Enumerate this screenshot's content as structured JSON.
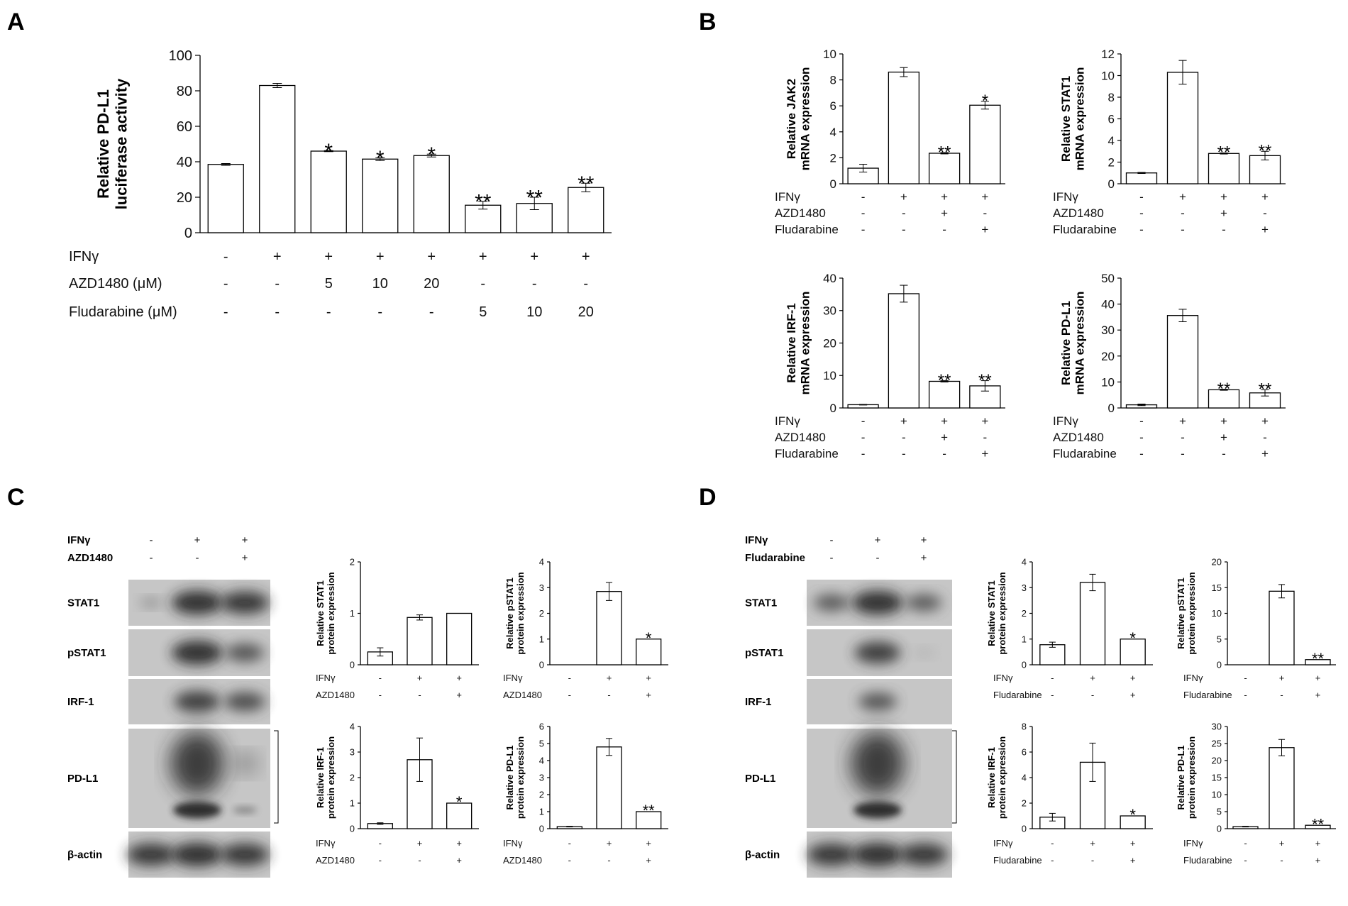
{
  "panels": {
    "A": {
      "letter": "A"
    },
    "B": {
      "letter": "B"
    },
    "C": {
      "letter": "C"
    },
    "D": {
      "letter": "D"
    }
  },
  "chart_data": [
    {
      "id": "A",
      "type": "bar",
      "ylabel": "Relative PD-L1\nluciferase activity",
      "ylim": [
        0,
        100
      ],
      "yticks": [
        0,
        20,
        40,
        60,
        80,
        100
      ],
      "values": [
        38.5,
        83,
        46,
        41.5,
        43.5,
        15.5,
        16.5,
        25.5
      ],
      "errors": [
        0.5,
        1.2,
        0.3,
        0.8,
        0.8,
        2.2,
        3.5,
        2.4
      ],
      "significance": [
        "",
        "",
        "*",
        "*",
        "*",
        "**",
        "**",
        "**"
      ],
      "conditions": [
        {
          "label": "IFNγ",
          "values": [
            "-",
            "+",
            "+",
            "+",
            "+",
            "+",
            "+",
            "+"
          ]
        },
        {
          "label": "AZD1480 (μM)",
          "values": [
            "-",
            "-",
            "5",
            "10",
            "20",
            "-",
            "-",
            "-"
          ]
        },
        {
          "label": "Fludarabine (μM)",
          "values": [
            "-",
            "-",
            "-",
            "-",
            "-",
            "5",
            "10",
            "20"
          ]
        }
      ]
    },
    {
      "id": "B1",
      "type": "bar",
      "ylabel": "Relative JAK2\nmRNA expression",
      "ylim": [
        0,
        10
      ],
      "yticks": [
        0,
        2,
        4,
        6,
        8,
        10
      ],
      "values": [
        1.2,
        8.6,
        2.35,
        6.05
      ],
      "errors": [
        0.3,
        0.35,
        0.05,
        0.3
      ],
      "significance": [
        "",
        "",
        "**",
        "*"
      ],
      "conditions": [
        {
          "label": "IFNγ",
          "values": [
            "-",
            "+",
            "+",
            "+"
          ]
        },
        {
          "label": "AZD1480",
          "values": [
            "-",
            "-",
            "+",
            "-"
          ]
        },
        {
          "label": "Fludarabine",
          "values": [
            "-",
            "-",
            "-",
            "+"
          ]
        }
      ]
    },
    {
      "id": "B2",
      "type": "bar",
      "ylabel": "Relative STAT1\nmRNA expression",
      "ylim": [
        0,
        12
      ],
      "yticks": [
        0,
        2,
        4,
        6,
        8,
        10,
        12
      ],
      "values": [
        1.0,
        10.3,
        2.8,
        2.6
      ],
      "errors": [
        0.05,
        1.1,
        0.05,
        0.4
      ],
      "significance": [
        "",
        "",
        "**",
        "**"
      ],
      "conditions": [
        {
          "label": "IFNγ",
          "values": [
            "-",
            "+",
            "+",
            "+"
          ]
        },
        {
          "label": "AZD1480",
          "values": [
            "-",
            "-",
            "+",
            "-"
          ]
        },
        {
          "label": "Fludarabine",
          "values": [
            "-",
            "-",
            "-",
            "+"
          ]
        }
      ]
    },
    {
      "id": "B3",
      "type": "bar",
      "ylabel": "Relative IRF-1\nmRNA expression",
      "ylim": [
        0,
        40
      ],
      "yticks": [
        0,
        10,
        20,
        30,
        40
      ],
      "values": [
        1.0,
        35.2,
        8.2,
        6.8
      ],
      "errors": [
        0.1,
        2.6,
        0.2,
        1.6
      ],
      "significance": [
        "",
        "",
        "**",
        "**"
      ],
      "conditions": [
        {
          "label": "IFNγ",
          "values": [
            "-",
            "+",
            "+",
            "+"
          ]
        },
        {
          "label": "AZD1480",
          "values": [
            "-",
            "-",
            "+",
            "-"
          ]
        },
        {
          "label": "Fludarabine",
          "values": [
            "-",
            "-",
            "-",
            "+"
          ]
        }
      ]
    },
    {
      "id": "B4",
      "type": "bar",
      "ylabel": "Relative PD-L1\nmRNA expression",
      "ylim": [
        0,
        50
      ],
      "yticks": [
        0,
        10,
        20,
        30,
        40,
        50
      ],
      "values": [
        1.2,
        35.6,
        7.0,
        5.8
      ],
      "errors": [
        0.3,
        2.4,
        0.2,
        1.2
      ],
      "significance": [
        "",
        "",
        "**",
        "**"
      ],
      "conditions": [
        {
          "label": "IFNγ",
          "values": [
            "-",
            "+",
            "+",
            "+"
          ]
        },
        {
          "label": "AZD1480",
          "values": [
            "-",
            "-",
            "+",
            "-"
          ]
        },
        {
          "label": "Fludarabine",
          "values": [
            "-",
            "-",
            "-",
            "+"
          ]
        }
      ]
    },
    {
      "id": "C1",
      "type": "bar",
      "ylabel": "Relative STAT1\nprotein expression",
      "ylim": [
        0,
        2
      ],
      "yticks": [
        0,
        1,
        2
      ],
      "values": [
        0.25,
        0.92,
        1.0
      ],
      "errors": [
        0.08,
        0.05,
        0.0
      ],
      "significance": [
        "",
        "",
        ""
      ],
      "conditions": [
        {
          "label": "IFNγ",
          "values": [
            "-",
            "+",
            "+"
          ]
        },
        {
          "label": "AZD1480",
          "values": [
            "-",
            "-",
            "+"
          ]
        }
      ]
    },
    {
      "id": "C2",
      "type": "bar",
      "ylabel": "Relative pSTAT1\nprotein expression",
      "ylim": [
        0,
        4
      ],
      "yticks": [
        0,
        1,
        2,
        3,
        4
      ],
      "values": [
        0.0,
        2.85,
        1.0
      ],
      "errors": [
        0.0,
        0.35,
        0.0
      ],
      "significance": [
        "",
        "",
        "*"
      ],
      "conditions": [
        {
          "label": "IFNγ",
          "values": [
            "-",
            "+",
            "+"
          ]
        },
        {
          "label": "AZD1480",
          "values": [
            "-",
            "-",
            "+"
          ]
        }
      ]
    },
    {
      "id": "C3",
      "type": "bar",
      "ylabel": "Relative IRF-1\nprotein expression",
      "ylim": [
        0,
        4
      ],
      "yticks": [
        0,
        1,
        2,
        3,
        4
      ],
      "values": [
        0.2,
        2.7,
        1.0
      ],
      "errors": [
        0.03,
        0.85,
        0.0
      ],
      "significance": [
        "",
        "",
        "*"
      ],
      "conditions": [
        {
          "label": "IFNγ",
          "values": [
            "-",
            "+",
            "+"
          ]
        },
        {
          "label": "AZD1480",
          "values": [
            "-",
            "-",
            "+"
          ]
        }
      ]
    },
    {
      "id": "C4",
      "type": "bar",
      "ylabel": "Relative PD-L1\nprotein expression",
      "ylim": [
        0,
        6
      ],
      "yticks": [
        0,
        1,
        2,
        3,
        4,
        5,
        6
      ],
      "values": [
        0.12,
        4.8,
        1.0
      ],
      "errors": [
        0.02,
        0.5,
        0.0
      ],
      "significance": [
        "",
        "",
        "**"
      ],
      "conditions": [
        {
          "label": "IFNγ",
          "values": [
            "-",
            "+",
            "+"
          ]
        },
        {
          "label": "AZD1480",
          "values": [
            "-",
            "-",
            "+"
          ]
        }
      ]
    },
    {
      "id": "D1",
      "type": "bar",
      "ylabel": "Relative STAT1\nprotein expression",
      "ylim": [
        0,
        4
      ],
      "yticks": [
        0,
        1,
        2,
        3,
        4
      ],
      "values": [
        0.78,
        3.2,
        1.0
      ],
      "errors": [
        0.1,
        0.32,
        0.0
      ],
      "significance": [
        "",
        "",
        "*"
      ],
      "conditions": [
        {
          "label": "IFNγ",
          "values": [
            "-",
            "+",
            "+"
          ]
        },
        {
          "label": "Fludarabine",
          "values": [
            "-",
            "-",
            "+"
          ]
        }
      ]
    },
    {
      "id": "D2",
      "type": "bar",
      "ylabel": "Relative pSTAT1\nprotein expression",
      "ylim": [
        0,
        20
      ],
      "yticks": [
        0,
        5,
        10,
        15,
        20
      ],
      "values": [
        0.0,
        14.3,
        1.0
      ],
      "errors": [
        0.0,
        1.3,
        0.0
      ],
      "significance": [
        "",
        "",
        "**"
      ],
      "conditions": [
        {
          "label": "IFNγ",
          "values": [
            "-",
            "+",
            "+"
          ]
        },
        {
          "label": "Fludarabine",
          "values": [
            "-",
            "-",
            "+"
          ]
        }
      ]
    },
    {
      "id": "D3",
      "type": "bar",
      "ylabel": "Relative IRF-1\nprotein expression",
      "ylim": [
        0,
        8
      ],
      "yticks": [
        0,
        2,
        4,
        6,
        8
      ],
      "values": [
        0.9,
        5.2,
        1.0
      ],
      "errors": [
        0.3,
        1.5,
        0.0
      ],
      "significance": [
        "",
        "",
        "*"
      ],
      "conditions": [
        {
          "label": "IFNγ",
          "values": [
            "-",
            "+",
            "+"
          ]
        },
        {
          "label": "Fludarabine",
          "values": [
            "-",
            "-",
            "+"
          ]
        }
      ]
    },
    {
      "id": "D4",
      "type": "bar",
      "ylabel": "Relative PD-L1\nprotein expression",
      "ylim": [
        0,
        30
      ],
      "yticks": [
        0,
        5,
        10,
        15,
        20,
        25,
        30
      ],
      "values": [
        0.6,
        23.8,
        1.0
      ],
      "errors": [
        0.1,
        2.4,
        0.0
      ],
      "significance": [
        "",
        "",
        "**"
      ],
      "conditions": [
        {
          "label": "IFNγ",
          "values": [
            "-",
            "+",
            "+"
          ]
        },
        {
          "label": "Fludarabine",
          "values": [
            "-",
            "-",
            "+"
          ]
        }
      ]
    }
  ],
  "blots": {
    "C": {
      "conditions": [
        {
          "label": "IFNγ",
          "values": [
            "-",
            "+",
            "+"
          ]
        },
        {
          "label": "AZD1480",
          "values": [
            "-",
            "-",
            "+"
          ]
        }
      ],
      "rows": [
        "STAT1",
        "pSTAT1",
        "IRF-1",
        "PD-L1",
        "β-actin"
      ]
    },
    "D": {
      "conditions": [
        {
          "label": "IFNγ",
          "values": [
            "-",
            "+",
            "+"
          ]
        },
        {
          "label": "Fludarabine",
          "values": [
            "-",
            "-",
            "+"
          ]
        }
      ],
      "rows": [
        "STAT1",
        "pSTAT1",
        "IRF-1",
        "PD-L1",
        "β-actin"
      ]
    }
  }
}
